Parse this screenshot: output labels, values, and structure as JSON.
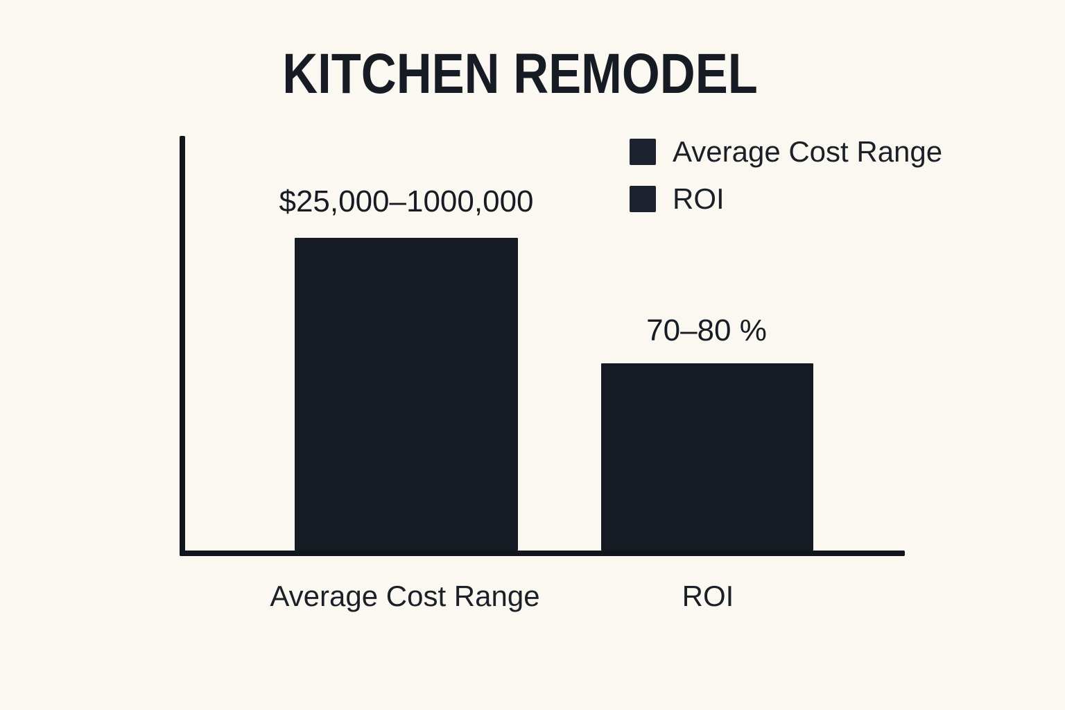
{
  "chart_data": {
    "type": "bar",
    "title": "KITCHEN REMODEL",
    "categories": [
      "Average Cost Range",
      "ROI"
    ],
    "values": [
      75.5,
      45.1
    ],
    "ylim": [
      0,
      100
    ],
    "data_labels": [
      "$25,000–1000,000",
      "70–80 %"
    ],
    "legend": [
      "Average Cost Range",
      "ROI"
    ],
    "legend_position": "top-right",
    "grid": false,
    "xlabel": "",
    "ylabel": "",
    "colors": {
      "bar": "#151a23",
      "swatch": "#1d232e",
      "axis": "#11151c",
      "text": "#171b23",
      "background": "#faf8f1"
    }
  }
}
